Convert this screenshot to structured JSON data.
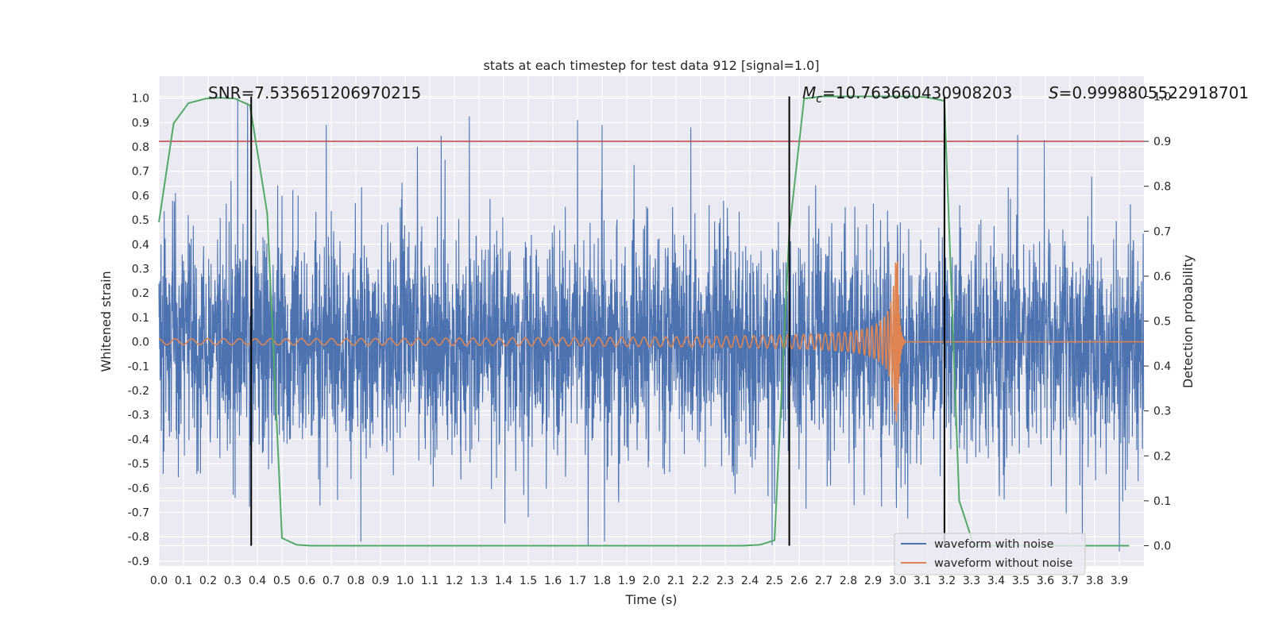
{
  "chart_data": {
    "type": "line",
    "title": "stats at each timestep for test data 912 [signal=1.0]",
    "xlabel": "Time (s)",
    "ylabel_left": "Whitened strain",
    "ylabel_right": "Detection probability",
    "xlim": [
      0.0,
      4.0
    ],
    "ylim_left": [
      -0.92,
      1.09
    ],
    "ylim_right": [
      -0.045,
      1.045
    ],
    "x_ticks": [
      "0.0",
      "0.1",
      "0.2",
      "0.3",
      "0.4",
      "0.5",
      "0.6",
      "0.7",
      "0.8",
      "0.9",
      "1.0",
      "1.1",
      "1.2",
      "1.3",
      "1.4",
      "1.5",
      "1.6",
      "1.7",
      "1.8",
      "1.9",
      "2.0",
      "2.1",
      "2.2",
      "2.3",
      "2.4",
      "2.5",
      "2.6",
      "2.7",
      "2.8",
      "2.9",
      "3.0",
      "3.1",
      "3.2",
      "3.3",
      "3.4",
      "3.5",
      "3.6",
      "3.7",
      "3.8",
      "3.9"
    ],
    "y_ticks_left": [
      "-0.9",
      "-0.8",
      "-0.7",
      "-0.6",
      "-0.5",
      "-0.4",
      "-0.3",
      "-0.2",
      "-0.1",
      "0.0",
      "0.1",
      "0.2",
      "0.3",
      "0.4",
      "0.5",
      "0.6",
      "0.7",
      "0.8",
      "0.9",
      "1.0"
    ],
    "y_ticks_right": [
      "0.0",
      "0.1",
      "0.2",
      "0.3",
      "0.4",
      "0.5",
      "0.6",
      "0.7",
      "0.8",
      "0.9",
      "1.0"
    ],
    "grid": true,
    "legend_position": "lower-right",
    "annotations": {
      "snr": "SNR=7.535651206970215",
      "mc_symbol": "M",
      "mc_sub": "c",
      "mc_value": "=10.763660430908203",
      "s_symbol": "S",
      "s_value": "=0.9998805522918701"
    },
    "threshold_line": {
      "axis": "right",
      "value": 0.9,
      "color": "#c44e52"
    },
    "vertical_markers": [
      0.375,
      2.56,
      3.19
    ],
    "series": [
      {
        "name": "waveform with noise",
        "axis": "left",
        "color": "#4c72b0",
        "noise_std": 0.22,
        "peaks": [
          [
            0.32,
            1.0
          ],
          [
            0.36,
            0.98
          ],
          [
            0.68,
            0.89
          ],
          [
            1.7,
            0.91
          ],
          [
            1.8,
            0.89
          ],
          [
            2.16,
            0.88
          ],
          [
            1.05,
            0.8
          ],
          [
            0.82,
            -0.82
          ],
          [
            1.81,
            -0.82
          ],
          [
            3.75,
            -0.82
          ],
          [
            3.9,
            -0.86
          ],
          [
            1.5,
            -0.72
          ]
        ]
      },
      {
        "name": "waveform without noise",
        "axis": "left",
        "color": "#dd8452",
        "chirp": {
          "t_merger": 3.0,
          "amp_start": 0.012,
          "amp_peak": 0.33,
          "ringdown_end": 3.03
        }
      },
      {
        "name": "detection probability",
        "axis": "right",
        "color": "#55a868",
        "x": [
          0.0,
          0.06,
          0.12,
          0.19,
          0.25,
          0.31,
          0.37,
          0.44,
          0.5,
          0.56,
          0.62,
          0.69,
          0.75,
          0.81,
          0.87,
          0.94,
          1.0,
          1.06,
          1.12,
          1.19,
          1.25,
          1.31,
          1.37,
          1.44,
          1.5,
          1.56,
          1.62,
          1.69,
          1.75,
          1.81,
          1.87,
          1.94,
          2.0,
          2.06,
          2.12,
          2.19,
          2.25,
          2.31,
          2.37,
          2.44,
          2.5,
          2.56,
          2.62,
          2.69,
          2.75,
          2.81,
          2.87,
          2.94,
          3.0,
          3.06,
          3.12,
          3.19,
          3.25,
          3.31,
          3.37,
          3.44,
          3.5,
          3.56,
          3.62,
          3.69,
          3.75,
          3.81,
          3.87,
          3.94
        ],
        "y": [
          0.72,
          0.94,
          0.985,
          0.995,
          0.997,
          0.995,
          0.98,
          0.74,
          0.017,
          0.002,
          0.0,
          0.0,
          0.0,
          0.0,
          0.0,
          0.0,
          0.0,
          0.0,
          0.0,
          0.0,
          0.0,
          0.0,
          0.0,
          0.0,
          0.0,
          0.0,
          0.0,
          0.0,
          0.0,
          0.0,
          0.0,
          0.0,
          0.0,
          0.0,
          0.0,
          0.0,
          0.0,
          0.0,
          0.0,
          0.002,
          0.012,
          0.7,
          0.995,
          1.0,
          1.0,
          1.0,
          1.0,
          1.0,
          1.0,
          1.0,
          0.998,
          0.99,
          0.1,
          0.0,
          0.0,
          0.0,
          0.0,
          0.0,
          0.0,
          0.0,
          0.0,
          0.0,
          0.0,
          0.0
        ]
      }
    ]
  }
}
